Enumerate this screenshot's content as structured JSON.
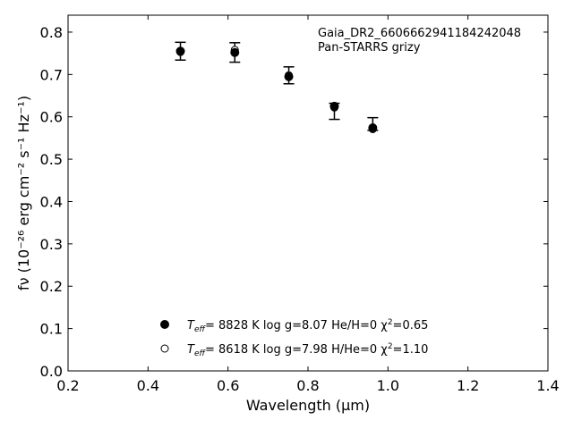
{
  "chart_data": {
    "type": "scatter",
    "title": "",
    "xlabel": "Wavelength (μm)",
    "ylabel": "fν (10⁻²⁶ erg cm⁻² s⁻¹ Hz⁻¹)",
    "xlim": [
      0.2,
      1.4
    ],
    "ylim": [
      0.0,
      0.84
    ],
    "xticks": [
      "0.2",
      "0.4",
      "0.6",
      "0.8",
      "1.0",
      "1.2",
      "1.4"
    ],
    "yticks": [
      "0.0",
      "0.1",
      "0.2",
      "0.3",
      "0.4",
      "0.5",
      "0.6",
      "0.7",
      "0.8"
    ],
    "grid": false,
    "legend_position": "bottom-center",
    "annotation": [
      "Gaia_DR2_6606662941184242048",
      "Pan-STARRS grizy"
    ],
    "series": [
      {
        "name": "T_eff=  8828 K  log g=8.07  He/H=0  χ²=0.65",
        "legend": {
          "pre": "T",
          "sub": "eff",
          "mid": "=  8828 K  log g=8.07  He/H=0  χ",
          "sup": "2",
          "post": "=0.65"
        },
        "marker": "filled-circle",
        "color": "#000000",
        "x": [
          0.481,
          0.617,
          0.752,
          0.866,
          0.962
        ],
        "y": [
          0.755,
          0.752,
          0.695,
          0.625,
          0.574
        ]
      },
      {
        "name": "T_eff=  8618 K  log g=7.98  H/He=0  χ²=1.10",
        "legend": {
          "pre": "T",
          "sub": "eff",
          "mid": "=  8618 K  log g=7.98  H/He=0  χ",
          "sup": "2",
          "post": "=1.10"
        },
        "marker": "open-circle",
        "color": "#000000",
        "x": [
          0.481,
          0.617,
          0.752,
          0.866,
          0.962
        ],
        "y": [
          0.753,
          0.758,
          0.698,
          0.622,
          0.571
        ]
      }
    ],
    "observed": {
      "x": [
        0.481,
        0.617,
        0.752,
        0.866,
        0.962
      ],
      "y": [
        0.755,
        0.752,
        0.698,
        0.613,
        0.583
      ],
      "yerr": [
        0.021,
        0.023,
        0.02,
        0.019,
        0.015
      ]
    }
  }
}
